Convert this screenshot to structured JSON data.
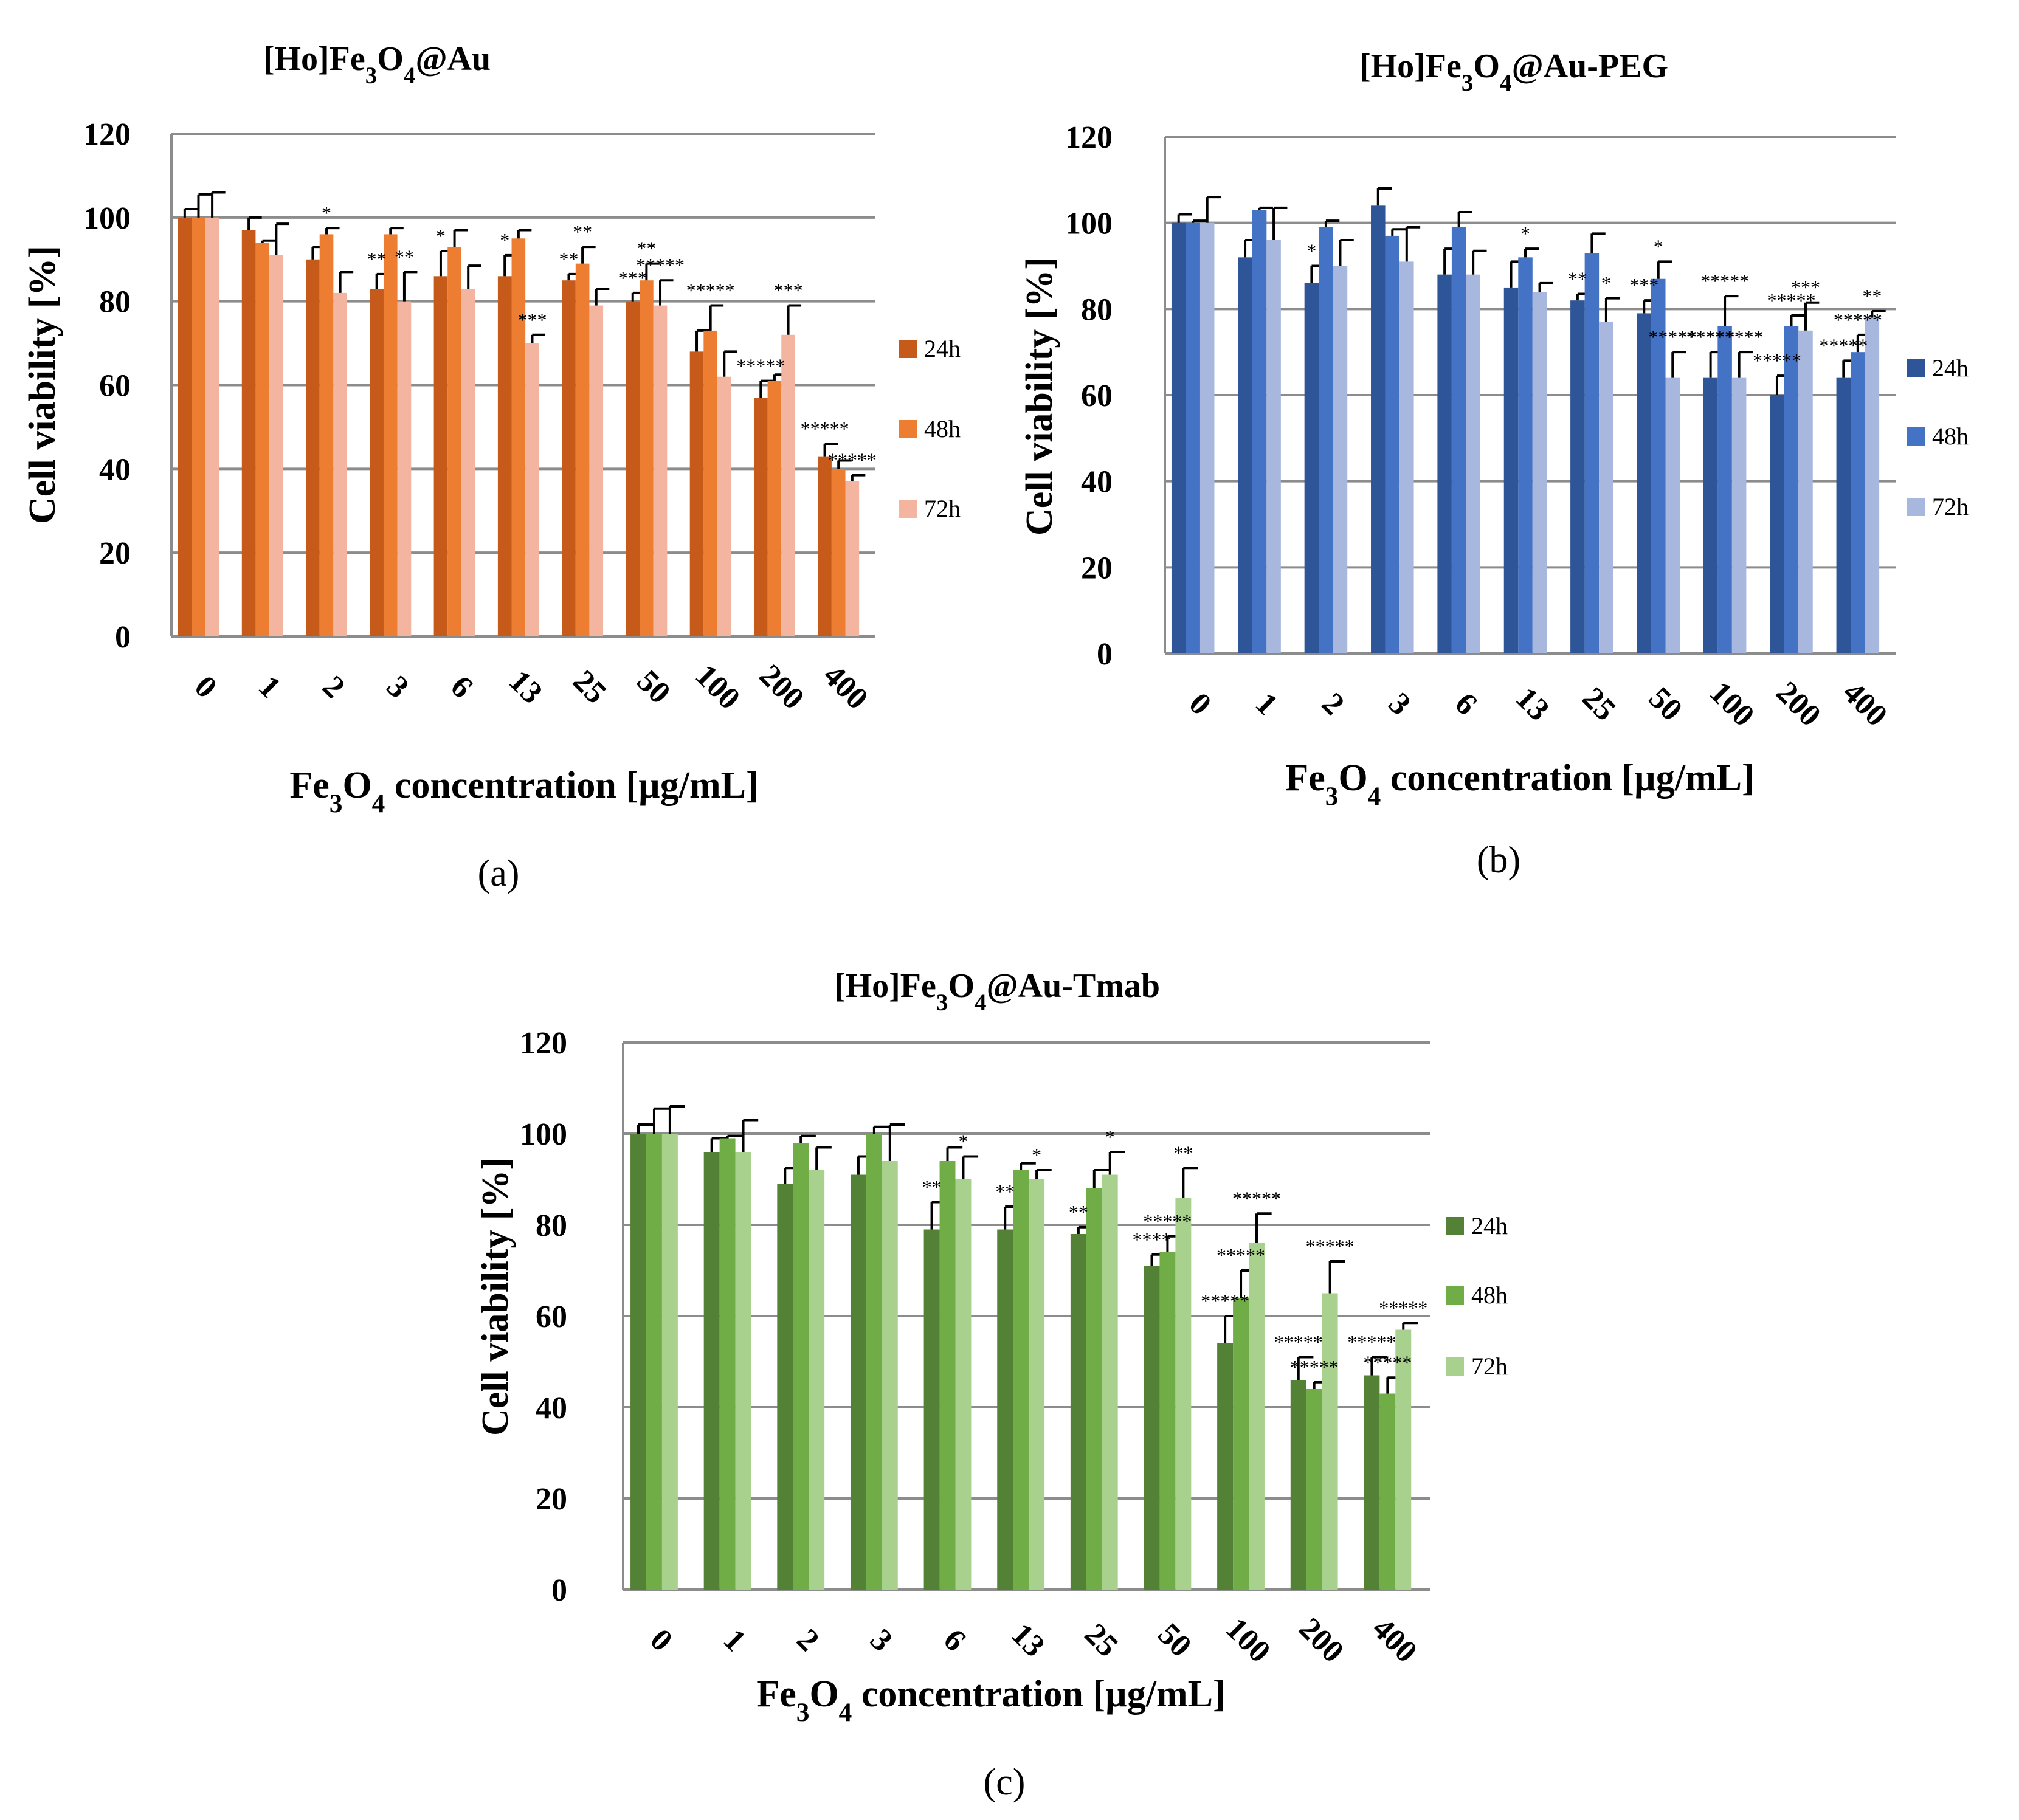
{
  "figure": {
    "panels": [
      {
        "id": "a",
        "label": "(a)",
        "title_parts": [
          "[Ho]Fe",
          "3",
          "O",
          "4",
          "@Au"
        ],
        "xlabel_parts": [
          "Fe",
          "3",
          "O",
          "4",
          " concentration [µg/mL]"
        ],
        "ylabel": "Cell  viability [%]"
      },
      {
        "id": "b",
        "label": "(b)",
        "title_parts": [
          "[Ho]Fe",
          "3",
          "O",
          "4",
          "@Au-PEG"
        ],
        "xlabel_parts": [
          "Fe",
          "3",
          "O",
          "4",
          " concentration [µg/mL]"
        ],
        "ylabel": "Cell viability [%]"
      },
      {
        "id": "c",
        "label": "(c)",
        "title_parts": [
          "[Ho]Fe",
          "3",
          "O",
          "4",
          "@Au-Tmab"
        ],
        "xlabel_parts": [
          "Fe",
          "3",
          "O",
          "4",
          " concentration [µg/mL]"
        ],
        "ylabel": "Cell viability [%]"
      }
    ]
  },
  "chart_data": [
    {
      "type": "bar",
      "categories": [
        "0",
        "1",
        "2",
        "3",
        "6",
        "13",
        "25",
        "50",
        "100",
        "200",
        "400"
      ],
      "ylim": [
        0,
        120
      ],
      "yticks": [
        0,
        20,
        40,
        60,
        80,
        100,
        120
      ],
      "grid": true,
      "legend_position": "right",
      "series": [
        {
          "name": "24h",
          "color": "#C55A1B",
          "values": [
            100,
            97,
            90,
            83,
            86,
            86,
            85,
            80,
            68,
            57,
            43
          ],
          "errors": [
            2,
            3,
            3,
            3.5,
            6,
            5,
            1.5,
            2,
            5,
            4,
            3
          ]
        },
        {
          "name": "48h",
          "color": "#ED7D31",
          "values": [
            100,
            94,
            96,
            96,
            93,
            95,
            89,
            85,
            73,
            61,
            40
          ],
          "errors": [
            5.5,
            0.5,
            1.5,
            1.5,
            4,
            2,
            4,
            4,
            6,
            1.5,
            2
          ]
        },
        {
          "name": "72h",
          "color": "#F4B5A0",
          "values": [
            100,
            91,
            82,
            80,
            83,
            70,
            79,
            79,
            62,
            72,
            37
          ],
          "errors": [
            6,
            7.5,
            5,
            7,
            5.5,
            2,
            4,
            6,
            6,
            7,
            1.5
          ]
        }
      ],
      "annotations": [
        {
          "text": "*",
          "category": "2",
          "series": "48h"
        },
        {
          "text": "**",
          "category": "3",
          "series": "24h"
        },
        {
          "text": "**",
          "category": "3",
          "series": "72h"
        },
        {
          "text": "*",
          "category": "6",
          "series": "24h"
        },
        {
          "text": "*",
          "category": "13",
          "series": "24h"
        },
        {
          "text": "***",
          "category": "13",
          "series": "72h"
        },
        {
          "text": "**",
          "category": "25",
          "series": "24h"
        },
        {
          "text": "**",
          "category": "25",
          "series": "48h"
        },
        {
          "text": "***",
          "category": "50",
          "series": "24h"
        },
        {
          "text": "**",
          "category": "50",
          "series": "48h"
        },
        {
          "text": "*****",
          "category": "50",
          "series": "72h"
        },
        {
          "text": "*****",
          "category": "100",
          "series": "48h"
        },
        {
          "text": "*****",
          "category": "200",
          "series": "24h"
        },
        {
          "text": "***",
          "category": "200",
          "series": "72h"
        },
        {
          "text": "*****",
          "category": "400",
          "series": "24h"
        },
        {
          "text": "*****",
          "category": "400",
          "series": "72h"
        }
      ]
    },
    {
      "type": "bar",
      "categories": [
        "0",
        "1",
        "2",
        "3",
        "6",
        "13",
        "25",
        "50",
        "100",
        "200",
        "400"
      ],
      "ylim": [
        0,
        120
      ],
      "yticks": [
        0,
        20,
        40,
        60,
        80,
        100,
        120
      ],
      "grid": true,
      "legend_position": "right",
      "series": [
        {
          "name": "24h",
          "color": "#2E5597",
          "values": [
            100,
            92,
            86,
            104,
            88,
            85,
            82,
            79,
            64,
            60,
            64
          ],
          "errors": [
            2,
            4,
            4,
            4,
            6,
            6,
            1.5,
            3,
            6,
            4.5,
            4
          ]
        },
        {
          "name": "48h",
          "color": "#4472C4",
          "values": [
            100,
            103,
            99,
            97,
            99,
            92,
            93,
            87,
            76,
            76,
            70
          ],
          "errors": [
            0.5,
            0.5,
            1.5,
            1.5,
            3.5,
            2,
            4.5,
            4,
            7,
            2.5,
            4
          ]
        },
        {
          "name": "72h",
          "color": "#A8B7DE",
          "values": [
            100,
            96,
            90,
            91,
            88,
            84,
            77,
            64,
            64,
            75,
            78
          ],
          "errors": [
            6,
            7.5,
            6,
            8,
            5.5,
            2,
            5.5,
            6,
            6,
            6.5,
            1.5
          ]
        }
      ],
      "annotations": [
        {
          "text": "*",
          "category": "2",
          "series": "24h"
        },
        {
          "text": "*",
          "category": "13",
          "series": "48h"
        },
        {
          "text": "**",
          "category": "25",
          "series": "24h"
        },
        {
          "text": "*",
          "category": "25",
          "series": "72h"
        },
        {
          "text": "*",
          "category": "50",
          "series": "48h"
        },
        {
          "text": "***",
          "category": "50",
          "series": "24h"
        },
        {
          "text": "*****",
          "category": "50",
          "series": "72h"
        },
        {
          "text": "*****",
          "category": "100",
          "series": "24h"
        },
        {
          "text": "*****",
          "category": "100",
          "series": "48h"
        },
        {
          "text": "*****",
          "category": "100",
          "series": "72h"
        },
        {
          "text": "*****",
          "category": "200",
          "series": "24h"
        },
        {
          "text": "*****",
          "category": "200",
          "series": "48h"
        },
        {
          "text": "***",
          "category": "200",
          "series": "72h"
        },
        {
          "text": "*****",
          "category": "400",
          "series": "24h"
        },
        {
          "text": "*****",
          "category": "400",
          "series": "48h"
        },
        {
          "text": "**",
          "category": "400",
          "series": "72h"
        }
      ]
    },
    {
      "type": "bar",
      "categories": [
        "0",
        "1",
        "2",
        "3",
        "6",
        "13",
        "25",
        "50",
        "100",
        "200",
        "400"
      ],
      "ylim": [
        0,
        120
      ],
      "yticks": [
        0,
        20,
        40,
        60,
        80,
        100,
        120
      ],
      "grid": true,
      "legend_position": "right",
      "series": [
        {
          "name": "24h",
          "color": "#538135",
          "values": [
            100,
            96,
            89,
            91,
            79,
            79,
            78,
            71,
            54,
            46,
            47
          ],
          "errors": [
            2,
            3,
            3.5,
            4,
            6,
            5,
            1.5,
            2.5,
            6,
            5,
            4
          ]
        },
        {
          "name": "48h",
          "color": "#70AD47",
          "values": [
            100,
            99,
            98,
            100,
            94,
            92,
            88,
            74,
            64,
            44,
            43
          ],
          "errors": [
            5.5,
            0.5,
            1.5,
            1.5,
            3,
            1.5,
            4,
            3.5,
            6,
            1.5,
            3.5
          ]
        },
        {
          "name": "72h",
          "color": "#A9D18E",
          "values": [
            100,
            96,
            92,
            94,
            90,
            90,
            91,
            86,
            76,
            65,
            57
          ],
          "errors": [
            6,
            7,
            5,
            8,
            5,
            2,
            5,
            6.5,
            6.5,
            7,
            1.5
          ]
        }
      ],
      "annotations": [
        {
          "text": "**",
          "category": "6",
          "series": "24h"
        },
        {
          "text": "*",
          "category": "6",
          "series": "72h"
        },
        {
          "text": "**",
          "category": "13",
          "series": "24h"
        },
        {
          "text": "*",
          "category": "13",
          "series": "72h"
        },
        {
          "text": "**",
          "category": "25",
          "series": "24h"
        },
        {
          "text": "*",
          "category": "25",
          "series": "72h"
        },
        {
          "text": "****",
          "category": "50",
          "series": "24h"
        },
        {
          "text": "*****",
          "category": "50",
          "series": "48h"
        },
        {
          "text": "**",
          "category": "50",
          "series": "72h"
        },
        {
          "text": "*****",
          "category": "100",
          "series": "24h"
        },
        {
          "text": "*****",
          "category": "100",
          "series": "48h"
        },
        {
          "text": "*****",
          "category": "100",
          "series": "72h"
        },
        {
          "text": "*****",
          "category": "200",
          "series": "24h"
        },
        {
          "text": "*****",
          "category": "200",
          "series": "48h"
        },
        {
          "text": "*****",
          "category": "200",
          "series": "72h"
        },
        {
          "text": "*****",
          "category": "400",
          "series": "24h"
        },
        {
          "text": "*****",
          "category": "400",
          "series": "48h"
        },
        {
          "text": "*****",
          "category": "400",
          "series": "72h"
        }
      ]
    }
  ]
}
